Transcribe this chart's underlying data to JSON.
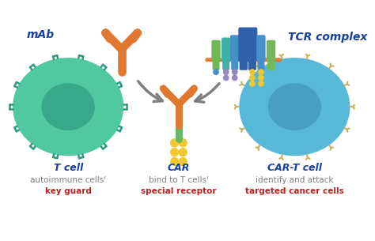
{
  "bg_color": "#ffffff",
  "mAb_label": "mAb",
  "tcr_label": "TCR complex",
  "tcell_label": "T cell",
  "tcell_sub1": "autoimmune cells'",
  "tcell_sub2": "key guard",
  "car_label": "CAR",
  "car_sub1": "bind to T cells'",
  "car_sub2": "special receptor",
  "cart_label": "CAR-T cell",
  "cart_sub1": "identify and attack",
  "cart_sub2": "targeted cancer cells",
  "orange": "#E07830",
  "green": "#68B86A",
  "yellow": "#F0C830",
  "teal_cell": "#50C8A0",
  "teal_nucleus": "#38A888",
  "teal_dark": "#309878",
  "blue_cell": "#58B8D8",
  "blue_nucleus": "#48A0C0",
  "blue_dark": "#3888A8",
  "blue_tcr_dark": "#3060A8",
  "blue_tcr_mid": "#4890C8",
  "teal_tcr": "#40B0A8",
  "green_tcr": "#70B858",
  "purple_tcr": "#9888C0",
  "label_blue": "#1840A0",
  "label_red": "#C02020",
  "label_gray": "#808080",
  "arrow_gray": "#808080",
  "receptor_teal": "#309880",
  "receptor_yellow": "#C8B060"
}
